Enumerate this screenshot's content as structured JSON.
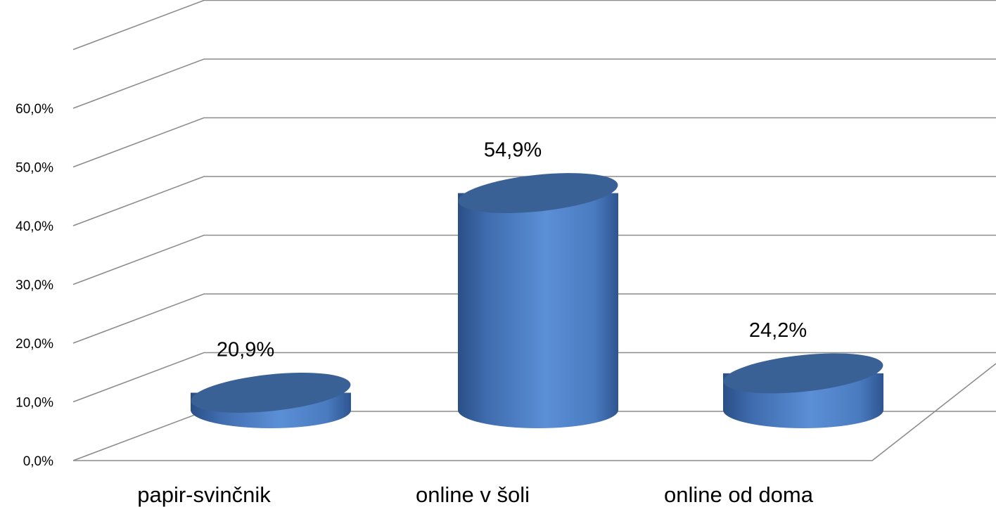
{
  "chart_data": {
    "type": "bar",
    "style": "3d-cylinder",
    "categories": [
      "papir-svinčnik",
      "online v šoli",
      "online od doma"
    ],
    "values": [
      20.9,
      54.9,
      24.2
    ],
    "data_labels": [
      "20,9%",
      "54,9%",
      "24,2%"
    ],
    "y_ticks": [
      "0,0%",
      "10,0%",
      "20,0%",
      "30,0%",
      "40,0%",
      "50,0%",
      "60,0%"
    ],
    "ylim": [
      0,
      70
    ],
    "grid": true,
    "legend": "none",
    "colors": {
      "bar_light": "#5b8fd6",
      "bar_mid": "#4a7bc0",
      "bar_dark": "#2e5590",
      "top": "#3a6196",
      "grid": "#8c8c8c"
    }
  }
}
